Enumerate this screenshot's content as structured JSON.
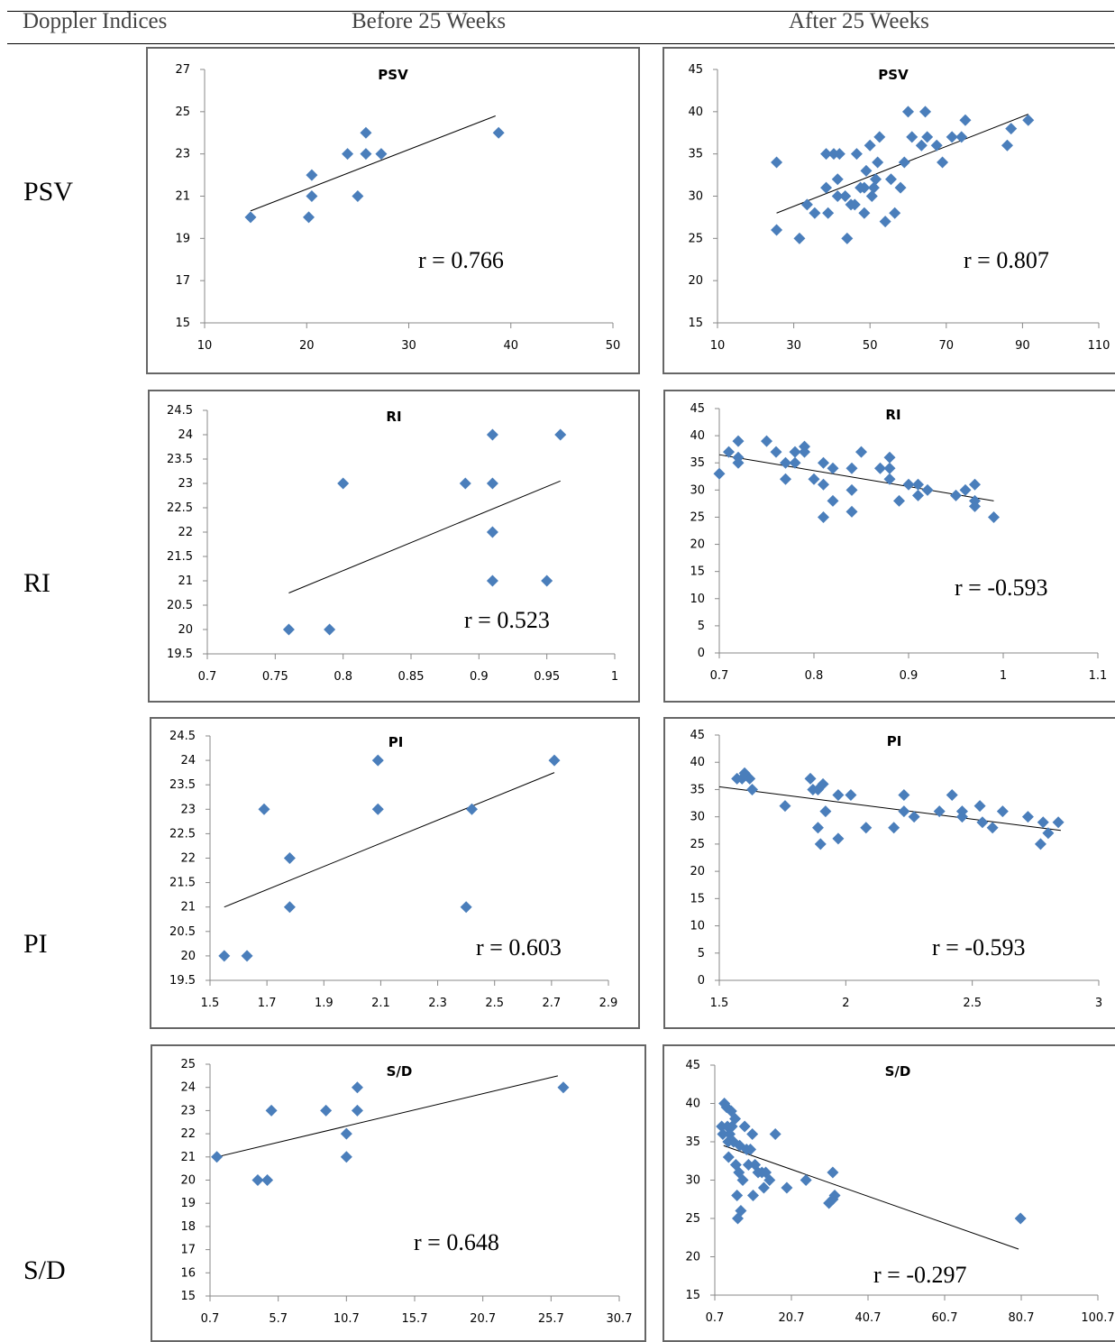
{
  "header": {
    "col1": "Doppler Indices",
    "col2": "Before 25 Weeks",
    "col3": "After 25 Weeks"
  },
  "rows": [
    {
      "label": "PSV"
    },
    {
      "label": "RI"
    },
    {
      "label": "PI"
    },
    {
      "label": "S/D"
    }
  ],
  "colors": {
    "marker": "#4a7ebb",
    "trend": "#000000"
  },
  "chart_data": [
    {
      "id": "psv-before",
      "type": "scatter",
      "title": "PSV",
      "annotation": "r = 0.766",
      "xlim": [
        10,
        50
      ],
      "ylim": [
        15,
        27
      ],
      "xticks": [
        10,
        20,
        30,
        40,
        50
      ],
      "yticks": [
        15,
        17,
        19,
        21,
        23,
        25,
        27
      ],
      "xtick_labels": [
        "10",
        "20",
        "30",
        "40",
        "50"
      ],
      "ytick_labels": [
        "15",
        "17",
        "19",
        "21",
        "23",
        "25",
        "27"
      ],
      "trendline": [
        [
          14.5,
          20.3
        ],
        [
          38.5,
          24.8
        ]
      ],
      "points": [
        [
          14.5,
          20
        ],
        [
          20.2,
          20
        ],
        [
          20.5,
          21
        ],
        [
          20.5,
          22
        ],
        [
          24,
          23
        ],
        [
          25,
          21
        ],
        [
          25.8,
          24
        ],
        [
          25.8,
          23
        ],
        [
          27.3,
          23
        ],
        [
          38.8,
          24
        ]
      ]
    },
    {
      "id": "psv-after",
      "type": "scatter",
      "title": "PSV",
      "annotation": "r = 0.807",
      "xlim": [
        10,
        110
      ],
      "ylim": [
        15,
        45
      ],
      "xticks": [
        10,
        30,
        50,
        70,
        90,
        110
      ],
      "yticks": [
        15,
        20,
        25,
        30,
        35,
        40,
        45
      ],
      "xtick_labels": [
        "10",
        "30",
        "50",
        "70",
        "90",
        "110"
      ],
      "ytick_labels": [
        "15",
        "20",
        "25",
        "30",
        "35",
        "40",
        "45"
      ],
      "trendline": [
        [
          25.5,
          28
        ],
        [
          91.5,
          39.7
        ]
      ],
      "points": [
        [
          25.5,
          34
        ],
        [
          25.5,
          26
        ],
        [
          31.5,
          25
        ],
        [
          33.5,
          29
        ],
        [
          35.5,
          28
        ],
        [
          38.5,
          31
        ],
        [
          38.5,
          35
        ],
        [
          39,
          28
        ],
        [
          40.5,
          35
        ],
        [
          41.5,
          32
        ],
        [
          42,
          35
        ],
        [
          41.5,
          30
        ],
        [
          43.5,
          30
        ],
        [
          44,
          25
        ],
        [
          45,
          29
        ],
        [
          46,
          29
        ],
        [
          46.5,
          35
        ],
        [
          47.5,
          31
        ],
        [
          48.5,
          31
        ],
        [
          48.5,
          28
        ],
        [
          49,
          33
        ],
        [
          50,
          36
        ],
        [
          50.5,
          30
        ],
        [
          51,
          31
        ],
        [
          51.5,
          32
        ],
        [
          52,
          34
        ],
        [
          52.5,
          37
        ],
        [
          54,
          27
        ],
        [
          55.5,
          32
        ],
        [
          56.5,
          28
        ],
        [
          58,
          31
        ],
        [
          59,
          34
        ],
        [
          60,
          40
        ],
        [
          61,
          37
        ],
        [
          63.5,
          36
        ],
        [
          64.5,
          40
        ],
        [
          65,
          37
        ],
        [
          67.5,
          36
        ],
        [
          69,
          34
        ],
        [
          71.5,
          37
        ],
        [
          74,
          37
        ],
        [
          75,
          39
        ],
        [
          86,
          36
        ],
        [
          87,
          38
        ],
        [
          91.5,
          39
        ]
      ]
    },
    {
      "id": "ri-before",
      "type": "scatter",
      "title": "RI",
      "annotation": "r = 0.523",
      "xlim": [
        0.7,
        1
      ],
      "ylim": [
        19.5,
        24.5
      ],
      "xticks": [
        0.7,
        0.75,
        0.8,
        0.85,
        0.9,
        0.95,
        1
      ],
      "yticks": [
        19.5,
        20,
        20.5,
        21,
        21.5,
        22,
        22.5,
        23,
        23.5,
        24,
        24.5
      ],
      "xtick_labels": [
        "0.7",
        "0.75",
        "0.8",
        "0.85",
        "0.9",
        "0.95",
        "1"
      ],
      "ytick_labels": [
        "19.5",
        "20",
        "20.5",
        "21",
        "21.5",
        "22",
        "22.5",
        "23",
        "23.5",
        "24",
        "24.5"
      ],
      "trendline": [
        [
          0.76,
          20.75
        ],
        [
          0.96,
          23.05
        ]
      ],
      "points": [
        [
          0.76,
          20
        ],
        [
          0.79,
          20
        ],
        [
          0.8,
          23
        ],
        [
          0.89,
          23
        ],
        [
          0.91,
          24
        ],
        [
          0.91,
          23
        ],
        [
          0.91,
          22
        ],
        [
          0.91,
          21
        ],
        [
          0.95,
          21
        ],
        [
          0.96,
          24
        ]
      ]
    },
    {
      "id": "ri-after",
      "type": "scatter",
      "title": "RI",
      "annotation": "r = -0.593",
      "xlim": [
        0.7,
        1.1
      ],
      "ylim": [
        0,
        45
      ],
      "xticks": [
        0.7,
        0.8,
        0.9,
        1,
        1.1
      ],
      "yticks": [
        0,
        5,
        10,
        15,
        20,
        25,
        30,
        35,
        40,
        45
      ],
      "xtick_labels": [
        "0.7",
        "0.8",
        "0.9",
        "1",
        "1.1"
      ],
      "ytick_labels": [
        "0",
        "5",
        "10",
        "15",
        "20",
        "25",
        "30",
        "35",
        "40",
        "45"
      ],
      "trendline": [
        [
          0.7,
          36.5
        ],
        [
          0.99,
          28
        ]
      ],
      "points": [
        [
          0.7,
          33
        ],
        [
          0.71,
          37
        ],
        [
          0.72,
          36
        ],
        [
          0.72,
          35
        ],
        [
          0.72,
          39
        ],
        [
          0.75,
          39
        ],
        [
          0.76,
          37
        ],
        [
          0.77,
          35
        ],
        [
          0.77,
          32
        ],
        [
          0.78,
          37
        ],
        [
          0.78,
          35
        ],
        [
          0.79,
          38
        ],
        [
          0.79,
          37
        ],
        [
          0.8,
          32
        ],
        [
          0.81,
          35
        ],
        [
          0.81,
          31
        ],
        [
          0.81,
          25
        ],
        [
          0.82,
          34
        ],
        [
          0.82,
          28
        ],
        [
          0.84,
          34
        ],
        [
          0.84,
          30
        ],
        [
          0.84,
          26
        ],
        [
          0.85,
          37
        ],
        [
          0.87,
          34
        ],
        [
          0.88,
          36
        ],
        [
          0.88,
          34
        ],
        [
          0.88,
          32
        ],
        [
          0.89,
          28
        ],
        [
          0.9,
          31
        ],
        [
          0.91,
          31
        ],
        [
          0.91,
          29
        ],
        [
          0.92,
          30
        ],
        [
          0.95,
          29
        ],
        [
          0.96,
          30
        ],
        [
          0.97,
          31
        ],
        [
          0.97,
          28
        ],
        [
          0.97,
          27
        ],
        [
          0.99,
          25
        ]
      ]
    },
    {
      "id": "pi-before",
      "type": "scatter",
      "title": "PI",
      "annotation": "r = 0.603",
      "xlim": [
        1.5,
        2.9
      ],
      "ylim": [
        19.5,
        24.5
      ],
      "xticks": [
        1.5,
        1.7,
        1.9,
        2.1,
        2.3,
        2.5,
        2.7,
        2.9
      ],
      "yticks": [
        19.5,
        20,
        20.5,
        21,
        21.5,
        22,
        22.5,
        23,
        23.5,
        24,
        24.5
      ],
      "xtick_labels": [
        "1.5",
        "1.7",
        "1.9",
        "2.1",
        "2.3",
        "2.5",
        "2.7",
        "2.9"
      ],
      "ytick_labels": [
        "19.5",
        "20",
        "20.5",
        "21",
        "21.5",
        "22",
        "22.5",
        "23",
        "23.5",
        "24",
        "24.5"
      ],
      "trendline": [
        [
          1.55,
          21
        ],
        [
          2.71,
          23.75
        ]
      ],
      "points": [
        [
          1.55,
          20
        ],
        [
          1.63,
          20
        ],
        [
          1.69,
          23
        ],
        [
          1.78,
          22
        ],
        [
          1.78,
          21
        ],
        [
          2.09,
          24
        ],
        [
          2.09,
          23
        ],
        [
          2.4,
          21
        ],
        [
          2.42,
          23
        ],
        [
          2.71,
          24
        ]
      ]
    },
    {
      "id": "pi-after",
      "type": "scatter",
      "title": "PI",
      "annotation": "r = -0.593",
      "xlim": [
        1.5,
        3
      ],
      "ylim": [
        0,
        45
      ],
      "xticks": [
        1.5,
        2,
        2.5,
        3
      ],
      "yticks": [
        0,
        5,
        10,
        15,
        20,
        25,
        30,
        35,
        40,
        45
      ],
      "xtick_labels": [
        "1.5",
        "2",
        "2.5",
        "3"
      ],
      "ytick_labels": [
        "0",
        "5",
        "10",
        "15",
        "20",
        "25",
        "30",
        "35",
        "40",
        "45"
      ],
      "trendline": [
        [
          1.5,
          35.5
        ],
        [
          2.85,
          27.5
        ]
      ],
      "points": [
        [
          1.57,
          37
        ],
        [
          1.59,
          37
        ],
        [
          1.6,
          38
        ],
        [
          1.62,
          37
        ],
        [
          1.63,
          35
        ],
        [
          1.76,
          32
        ],
        [
          1.86,
          37
        ],
        [
          1.87,
          35
        ],
        [
          1.89,
          28
        ],
        [
          1.89,
          35
        ],
        [
          1.9,
          25
        ],
        [
          1.91,
          36
        ],
        [
          1.92,
          31
        ],
        [
          1.97,
          26
        ],
        [
          1.97,
          34
        ],
        [
          2.02,
          34
        ],
        [
          2.08,
          28
        ],
        [
          2.19,
          28
        ],
        [
          2.23,
          34
        ],
        [
          2.23,
          31
        ],
        [
          2.27,
          30
        ],
        [
          2.37,
          31
        ],
        [
          2.42,
          34
        ],
        [
          2.46,
          31
        ],
        [
          2.46,
          30
        ],
        [
          2.53,
          32
        ],
        [
          2.54,
          29
        ],
        [
          2.58,
          28
        ],
        [
          2.62,
          31
        ],
        [
          2.72,
          30
        ],
        [
          2.77,
          25
        ],
        [
          2.78,
          29
        ],
        [
          2.8,
          27
        ],
        [
          2.84,
          29
        ]
      ]
    },
    {
      "id": "sd-before",
      "type": "scatter",
      "title": "S/D",
      "annotation": "r = 0.648",
      "xlim": [
        0.7,
        30.7
      ],
      "ylim": [
        15,
        25
      ],
      "xticks": [
        0.7,
        5.7,
        10.7,
        15.7,
        20.7,
        25.7,
        30.7
      ],
      "yticks": [
        15,
        16,
        17,
        18,
        19,
        20,
        21,
        22,
        23,
        24,
        25
      ],
      "xtick_labels": [
        "0.7",
        "5.7",
        "10.7",
        "15.7",
        "20.7",
        "25.7",
        "30.7"
      ],
      "ytick_labels": [
        "15",
        "16",
        "17",
        "18",
        "19",
        "20",
        "21",
        "22",
        "23",
        "24",
        "25"
      ],
      "trendline": [
        [
          1.2,
          21
        ],
        [
          26.2,
          24.5
        ]
      ],
      "points": [
        [
          1.2,
          21
        ],
        [
          4.2,
          20
        ],
        [
          4.9,
          20
        ],
        [
          5.2,
          23
        ],
        [
          9.2,
          23
        ],
        [
          10.7,
          22
        ],
        [
          10.7,
          21
        ],
        [
          11.5,
          24
        ],
        [
          11.5,
          23
        ],
        [
          26.6,
          24
        ]
      ]
    },
    {
      "id": "sd-after",
      "type": "scatter",
      "title": "S/D",
      "annotation": "r = -0.297",
      "xlim": [
        0.7,
        100.7
      ],
      "ylim": [
        15,
        45
      ],
      "xticks": [
        0.7,
        20.7,
        40.7,
        60.7,
        80.7,
        100.7
      ],
      "yticks": [
        15,
        20,
        25,
        30,
        35,
        40,
        45
      ],
      "xtick_labels": [
        "0.7",
        "20.7",
        "40.7",
        "60.7",
        "80.7",
        "100.7"
      ],
      "ytick_labels": [
        "15",
        "20",
        "25",
        "30",
        "35",
        "40",
        "45"
      ],
      "trendline": [
        [
          3,
          34.5
        ],
        [
          80,
          21
        ]
      ],
      "points": [
        [
          2.5,
          37
        ],
        [
          2.8,
          36
        ],
        [
          3.2,
          40
        ],
        [
          3.8,
          39.5
        ],
        [
          4,
          37
        ],
        [
          4.2,
          35
        ],
        [
          4.3,
          33
        ],
        [
          4.6,
          36
        ],
        [
          5,
          39
        ],
        [
          5.2,
          37
        ],
        [
          5.6,
          35
        ],
        [
          6,
          38
        ],
        [
          6.2,
          32
        ],
        [
          6.5,
          28
        ],
        [
          6.7,
          25
        ],
        [
          7,
          31
        ],
        [
          7.2,
          34.5
        ],
        [
          7.5,
          26
        ],
        [
          8,
          30
        ],
        [
          8.5,
          37
        ],
        [
          9,
          34
        ],
        [
          9.5,
          32
        ],
        [
          10,
          34
        ],
        [
          10.5,
          36
        ],
        [
          10.7,
          28
        ],
        [
          11.2,
          32
        ],
        [
          12,
          31
        ],
        [
          13,
          31
        ],
        [
          13.5,
          29
        ],
        [
          14,
          31
        ],
        [
          15,
          30
        ],
        [
          16.5,
          36
        ],
        [
          19.5,
          29
        ],
        [
          24.5,
          30
        ],
        [
          30.5,
          27
        ],
        [
          31.5,
          27.5
        ],
        [
          31.5,
          31
        ],
        [
          32,
          28
        ],
        [
          80.5,
          25
        ]
      ]
    }
  ]
}
